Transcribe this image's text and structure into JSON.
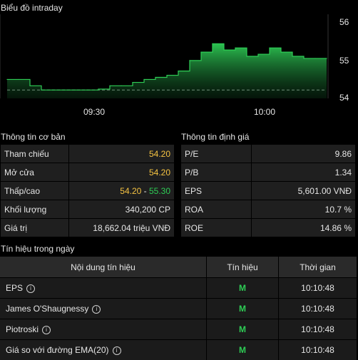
{
  "chart": {
    "title": "Biểu đồ intraday",
    "y_ticks": [
      "56",
      "55",
      "54"
    ],
    "x_ticks": [
      "09:30",
      "10:00"
    ],
    "accent_color": "#2ecc55",
    "chart_data": {
      "type": "area",
      "title": "Biểu đồ intraday",
      "ylim": [
        54,
        56
      ],
      "reference_price": 54.2,
      "x": [
        "09:00",
        "09:03",
        "09:06",
        "09:09",
        "09:12",
        "09:15",
        "09:18",
        "09:21",
        "09:24",
        "09:27",
        "09:30",
        "09:33",
        "09:36",
        "09:39",
        "09:42",
        "09:45",
        "09:48",
        "09:51",
        "09:54",
        "09:57",
        "10:00",
        "10:03",
        "10:06",
        "10:09",
        "10:12",
        "10:15",
        "10:18",
        "10:21",
        "10:24"
      ],
      "values": [
        54.45,
        54.45,
        54.3,
        54.2,
        54.2,
        54.2,
        54.2,
        54.2,
        54.22,
        54.3,
        54.3,
        54.38,
        54.45,
        54.5,
        54.55,
        54.65,
        54.9,
        55.1,
        55.3,
        55.15,
        55.2,
        55.0,
        55.05,
        55.2,
        55.1,
        55.0,
        54.95,
        54.95,
        54.95
      ]
    }
  },
  "basic_info": {
    "title": "Thông tin cơ bản",
    "rows": [
      {
        "label": "Tham chiếu",
        "value": "54.20"
      },
      {
        "label": "Mở cửa",
        "value": "54.20"
      },
      {
        "label": "Thấp/cao",
        "low": "54.20",
        "sep": " - ",
        "high": "55.30"
      },
      {
        "label": "Khối lượng",
        "value": "340,200 CP"
      },
      {
        "label": "Giá trị",
        "value": "18,662.04 triệu VNĐ"
      }
    ]
  },
  "valuation": {
    "title": "Thông tin định giá",
    "rows": [
      {
        "label": "P/E",
        "value": "9.86"
      },
      {
        "label": "P/B",
        "value": "1.34"
      },
      {
        "label": "EPS",
        "value": "5,601.00 VNĐ"
      },
      {
        "label": "ROA",
        "value": "10.7 %"
      },
      {
        "label": "ROE",
        "value": "14.86 %"
      }
    ]
  },
  "signals": {
    "title": "Tín hiệu trong ngày",
    "headers": [
      "Nội dung tín hiệu",
      "Tín hiệu",
      "Thời gian"
    ],
    "rows": [
      {
        "name": "EPS",
        "signal": "M",
        "time": "10:10:48"
      },
      {
        "name": "James O'Shaugnessy",
        "signal": "M",
        "time": "10:10:48"
      },
      {
        "name": "Piotroski",
        "signal": "M",
        "time": "10:10:48"
      },
      {
        "name": "Giá so với đường EMA(20)",
        "signal": "M",
        "time": "10:10:48"
      }
    ],
    "info_glyph": "i"
  }
}
